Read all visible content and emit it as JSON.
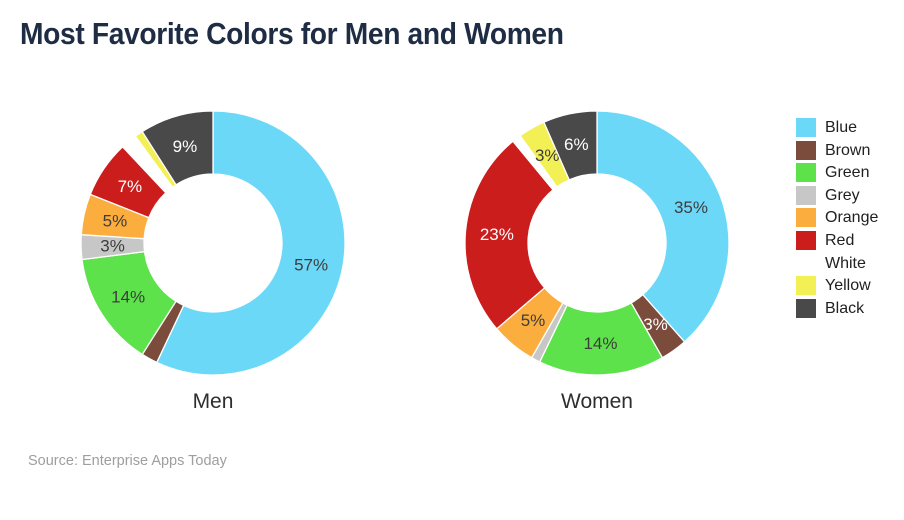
{
  "title": "Most Favorite Colors for Men and Women",
  "source_note": "Source: Enterprise Apps Today",
  "colors": {
    "background": "#FFFFFF",
    "title_text": "#1E2C44",
    "chart_label_text": "#2E2E2E",
    "legend_text": "#212121",
    "source_text": "#9E9E9E",
    "slice_border": "#FFFFFF"
  },
  "legend": {
    "position": "right",
    "items": [
      {
        "label": "Blue",
        "color": "#6CD8F8",
        "label_text_color": "#3D3D3D"
      },
      {
        "label": "Brown",
        "color": "#7B4B3C",
        "label_text_color": "#FFFFFF"
      },
      {
        "label": "Green",
        "color": "#5EE24B",
        "label_text_color": "#3D3D3D"
      },
      {
        "label": "Grey",
        "color": "#C7C7C7",
        "label_text_color": "#3D3D3D"
      },
      {
        "label": "Orange",
        "color": "#FBAD3D",
        "label_text_color": "#3D3D3D"
      },
      {
        "label": "Red",
        "color": "#CA1D1C",
        "label_text_color": "#FFFFFF"
      },
      {
        "label": "White",
        "color": "#FFFFFF",
        "label_text_color": "#3D3D3D"
      },
      {
        "label": "Yellow",
        "color": "#F2F054",
        "label_text_color": "#3D3D3D"
      },
      {
        "label": "Black",
        "color": "#494949",
        "label_text_color": "#FFFFFF"
      }
    ]
  },
  "chart_data": [
    {
      "type": "pie",
      "subtype": "donut",
      "title": "Men",
      "categories": [
        "Blue",
        "Brown",
        "Green",
        "Grey",
        "Orange",
        "Red",
        "White",
        "Yellow",
        "Black"
      ],
      "values": [
        57,
        2,
        14,
        3,
        5,
        7,
        2,
        1,
        9
      ],
      "slice_labels": [
        "57%",
        "",
        "14%",
        "3%",
        "5%",
        "7%",
        "",
        "",
        "9%"
      ],
      "start_angle_deg": 0,
      "direction": "clockwise",
      "hole_ratio": 0.52,
      "legend_position": "right"
    },
    {
      "type": "pie",
      "subtype": "donut",
      "title": "Women",
      "categories": [
        "Blue",
        "Brown",
        "Green",
        "Grey",
        "Orange",
        "Red",
        "White",
        "Yellow",
        "Black"
      ],
      "values": [
        35,
        3,
        14,
        1,
        5,
        23,
        1,
        3,
        6
      ],
      "slice_labels": [
        "35%",
        "3%",
        "14%",
        "",
        "5%",
        "23%",
        "",
        "3%",
        "6%"
      ],
      "start_angle_deg": 0,
      "direction": "clockwise",
      "hole_ratio": 0.52,
      "legend_position": "right"
    }
  ]
}
